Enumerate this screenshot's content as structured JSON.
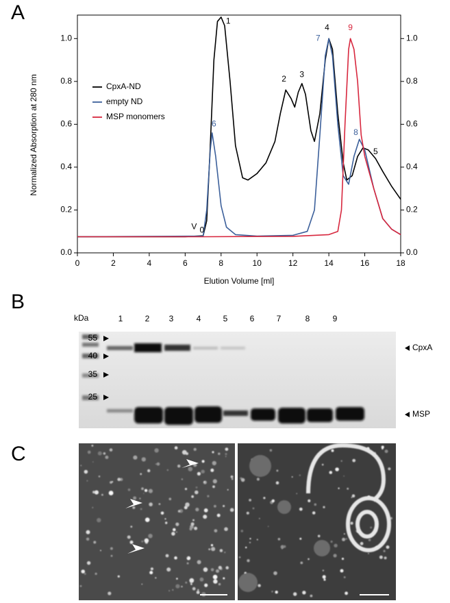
{
  "panels": {
    "a": "A",
    "b": "B",
    "c": "C"
  },
  "chart_data": {
    "type": "line",
    "xlabel": "Elution Volume [ml]",
    "ylabel": "Normalized Absorption at 280 nm",
    "xlim": [
      0,
      18
    ],
    "ylim": [
      0,
      1.1
    ],
    "xticks": [
      0,
      2,
      4,
      6,
      8,
      10,
      12,
      14,
      16,
      18
    ],
    "yticks": [
      {
        "value": 0,
        "label": "0.0"
      },
      0.2,
      0.4,
      0.6,
      0.8,
      {
        "value": 1,
        "label": "1.0"
      }
    ],
    "right_axis": true,
    "legend": "left",
    "series": [
      {
        "name": "CpxA-ND",
        "color": "#000000",
        "x": [
          0,
          6,
          7,
          7.2,
          7.4,
          7.6,
          7.8,
          8.0,
          8.2,
          8.5,
          8.8,
          9.2,
          9.5,
          10,
          10.5,
          11,
          11.3,
          11.6,
          11.9,
          12.1,
          12.3,
          12.5,
          12.7,
          13,
          13.2,
          13.5,
          13.8,
          14,
          14.2,
          14.5,
          14.8,
          15,
          15.3,
          15.6,
          15.9,
          16.2,
          16.6,
          17,
          17.5,
          18
        ],
        "values": [
          0.075,
          0.075,
          0.08,
          0.15,
          0.5,
          0.9,
          1.08,
          1.1,
          1.06,
          0.8,
          0.5,
          0.35,
          0.34,
          0.37,
          0.42,
          0.52,
          0.65,
          0.76,
          0.72,
          0.68,
          0.75,
          0.79,
          0.74,
          0.57,
          0.52,
          0.65,
          0.9,
          1.0,
          0.95,
          0.65,
          0.42,
          0.34,
          0.36,
          0.45,
          0.49,
          0.48,
          0.44,
          0.38,
          0.31,
          0.25
        ]
      },
      {
        "name": "empty ND",
        "color": "#3b5f9a",
        "x": [
          0,
          7,
          7.2,
          7.4,
          7.5,
          7.7,
          8,
          8.3,
          8.8,
          10,
          12,
          12.8,
          13.2,
          13.5,
          13.8,
          14,
          14.2,
          14.5,
          14.8,
          15.1,
          15.4,
          15.7,
          16,
          16.5,
          17,
          17.5,
          18
        ],
        "values": [
          0.075,
          0.078,
          0.2,
          0.48,
          0.56,
          0.45,
          0.22,
          0.12,
          0.085,
          0.078,
          0.082,
          0.1,
          0.2,
          0.55,
          0.92,
          1.0,
          0.92,
          0.6,
          0.36,
          0.32,
          0.45,
          0.53,
          0.48,
          0.3,
          0.16,
          0.11,
          0.085
        ]
      },
      {
        "name": "MSP monomers",
        "color": "#d7263d",
        "x": [
          0,
          7,
          12,
          14,
          14.5,
          14.7,
          14.9,
          15.1,
          15.2,
          15.4,
          15.6,
          15.8,
          16,
          16.5,
          17,
          17.5,
          18
        ],
        "values": [
          0.075,
          0.075,
          0.077,
          0.085,
          0.1,
          0.2,
          0.6,
          0.95,
          1.0,
          0.95,
          0.8,
          0.55,
          0.45,
          0.3,
          0.16,
          0.11,
          0.085
        ]
      }
    ],
    "annotations": [
      {
        "text": "1",
        "x": 8.4,
        "y": 1.08,
        "color": "#000000"
      },
      {
        "text": "2",
        "x": 11.5,
        "y": 0.81,
        "color": "#000000"
      },
      {
        "text": "3",
        "x": 12.5,
        "y": 0.83,
        "color": "#000000"
      },
      {
        "text": "4",
        "x": 13.9,
        "y": 1.05,
        "color": "#000000"
      },
      {
        "text": "5",
        "x": 16.6,
        "y": 0.47,
        "color": "#000000"
      },
      {
        "text": "6",
        "x": 7.6,
        "y": 0.6,
        "color": "#3b5f9a"
      },
      {
        "text": "7",
        "x": 13.4,
        "y": 1.0,
        "color": "#3b5f9a"
      },
      {
        "text": "8",
        "x": 15.5,
        "y": 0.56,
        "color": "#3b5f9a"
      },
      {
        "text": "9",
        "x": 15.2,
        "y": 1.05,
        "color": "#d7263d"
      },
      {
        "text": "V",
        "sub": "0",
        "x": 6.5,
        "y": 0.12,
        "color": "#000000"
      }
    ]
  },
  "gel": {
    "unit": "kDa",
    "lanes": [
      "1",
      "2",
      "3",
      "4",
      "5",
      "6",
      "7",
      "8",
      "9"
    ],
    "markers": [
      "55",
      "40",
      "35",
      "25"
    ],
    "bands": [
      "CpxA",
      "MSP"
    ]
  }
}
